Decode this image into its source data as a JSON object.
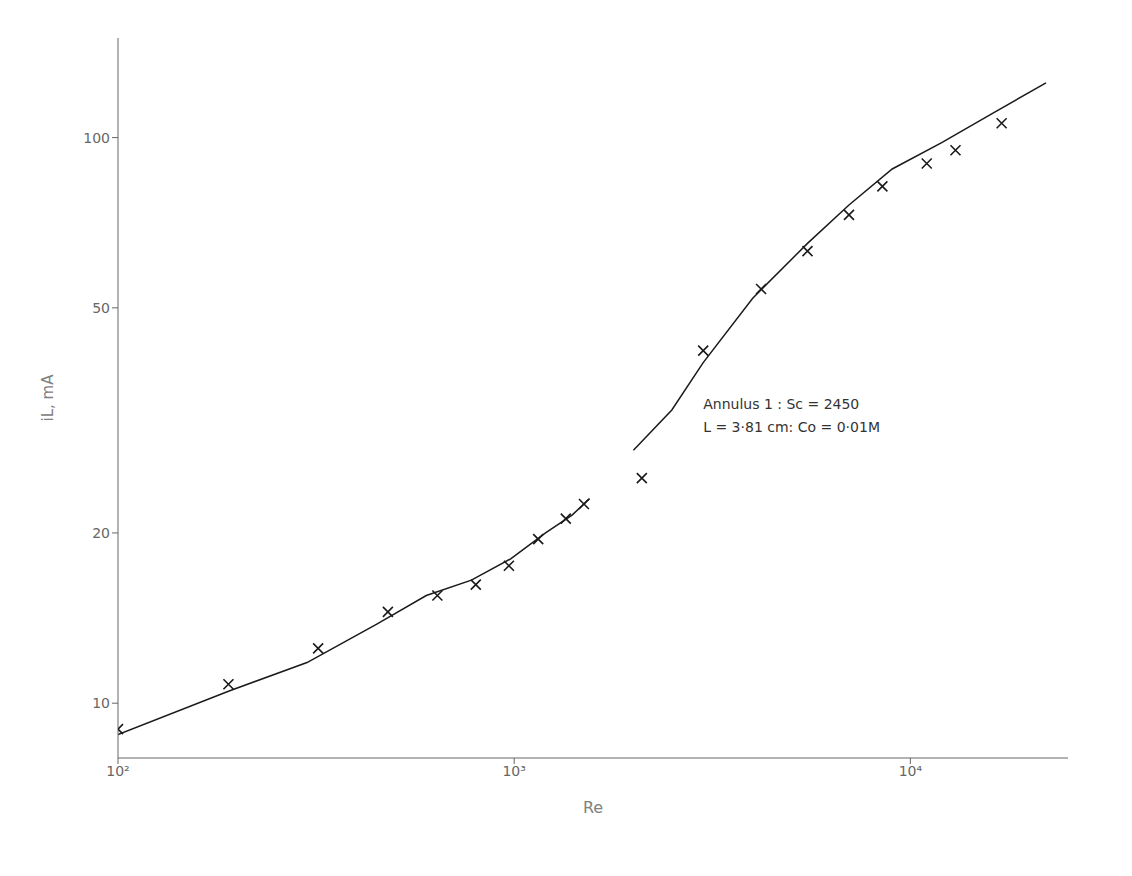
{
  "chart_data": {
    "type": "line",
    "x_label": "Re",
    "y_label": "iL, mA",
    "log": true,
    "grid": false,
    "xlim": [
      100,
      25000
    ],
    "ylim": [
      8,
      150
    ],
    "xticks": [
      {
        "value": 100,
        "label": "10²"
      },
      {
        "value": 1000,
        "label": "10³"
      },
      {
        "value": 10000,
        "label": "10⁴"
      }
    ],
    "yticks": [
      10,
      20,
      50,
      100
    ],
    "annotations": [
      {
        "x": 3000,
        "y": 35,
        "text": [
          "Annulus 1 : Sc = 2450",
          "L = 3·81 cm: Co = 0·01M"
        ]
      }
    ],
    "series": [
      {
        "type": "line",
        "color": "#1a1a1a",
        "x": [
          100,
          190,
          300,
          450,
          600,
          780,
          980,
          1200,
          1400,
          1550
        ],
        "values": [
          8.8,
          10.5,
          11.8,
          13.8,
          15.5,
          16.5,
          18.0,
          20.0,
          21.5,
          23.0
        ]
      },
      {
        "type": "line",
        "color": "#1a1a1a",
        "x": [
          2000,
          2500,
          3000,
          4000,
          5500,
          7000,
          9000,
          12000,
          16000,
          22000
        ],
        "values": [
          28.0,
          33.0,
          40.0,
          52.0,
          65.0,
          76.0,
          88.0,
          98.0,
          110.0,
          125.0
        ]
      },
      {
        "type": "scatter",
        "marker": "x",
        "color": "#1a1a1a",
        "x": [
          100,
          190,
          320,
          480,
          640,
          800,
          970,
          1150,
          1350,
          1500,
          2100,
          3000,
          4200,
          5500,
          7000,
          8500,
          11000,
          13000,
          17000
        ],
        "values": [
          9.0,
          10.8,
          12.5,
          14.5,
          15.5,
          16.2,
          17.5,
          19.5,
          21.2,
          22.5,
          25.0,
          42.0,
          54.0,
          63.0,
          73.0,
          82.0,
          90.0,
          95.0,
          106.0
        ]
      }
    ]
  }
}
